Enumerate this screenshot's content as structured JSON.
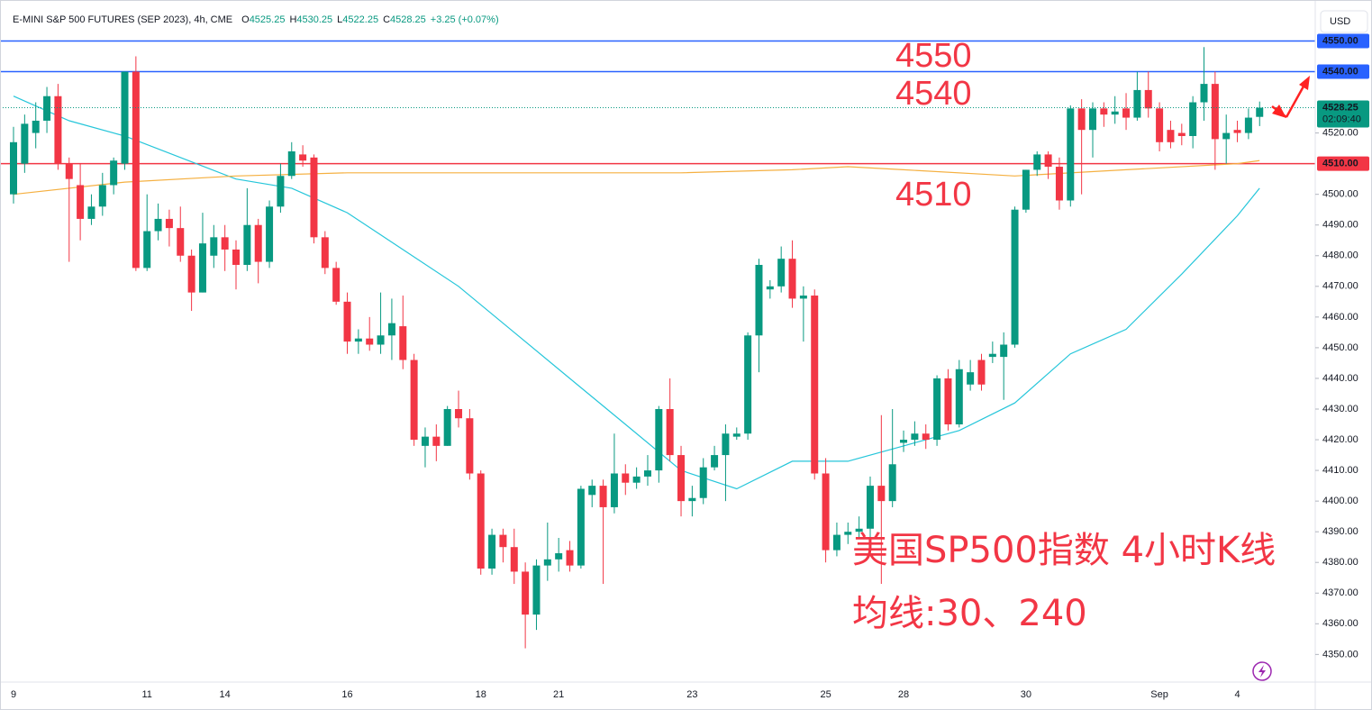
{
  "chart_data": {
    "type": "candlestick",
    "title": "E-MINI S&P 500 FUTURES (SEP 2023), 4h, CME",
    "ohlc_legend": [
      {
        "key": "O",
        "value": 4525.25
      },
      {
        "key": "H",
        "value": 4530.25
      },
      {
        "key": "L",
        "value": 4522.25
      },
      {
        "key": "C",
        "value": 4528.25
      }
    ],
    "change": "+3.25 (+0.07%)",
    "currency": "USD",
    "up_color": "#089981",
    "down_color": "#f23645",
    "categories": [
      "9",
      null,
      null,
      null,
      null,
      null,
      null,
      null,
      null,
      null,
      null,
      null,
      "11",
      null,
      null,
      null,
      null,
      null,
      null,
      "14",
      null,
      null,
      null,
      null,
      null,
      null,
      null,
      null,
      null,
      null,
      "16",
      null,
      null,
      null,
      null,
      null,
      null,
      null,
      null,
      null,
      null,
      null,
      "18",
      null,
      null,
      null,
      null,
      null,
      null,
      "21",
      null,
      null,
      null,
      null,
      null,
      null,
      null,
      null,
      null,
      null,
      null,
      "23",
      null,
      null,
      null,
      null,
      null,
      null,
      null,
      null,
      null,
      null,
      null,
      "25",
      null,
      null,
      null,
      null,
      null,
      null,
      "28",
      null,
      null,
      null,
      null,
      null,
      null,
      null,
      null,
      null,
      null,
      "30",
      null,
      null,
      null,
      null,
      null,
      null,
      null,
      null,
      null,
      null,
      null,
      "Sep",
      null,
      null,
      null,
      null,
      null,
      null,
      "4",
      null,
      null
    ],
    "open": [
      4500,
      4510,
      4520,
      4524,
      4532,
      4510,
      4503,
      4492,
      4496,
      4503,
      4510,
      4540,
      4476,
      4488,
      4492,
      4489,
      4480,
      4468,
      4480,
      4486,
      4482,
      4477,
      4490,
      4478,
      4496,
      4506,
      4513,
      4512,
      4486,
      4476,
      4465,
      4452,
      4453,
      4451,
      4454,
      4457,
      4446,
      4418,
      4421,
      4418,
      4430,
      4427,
      4409,
      4378,
      4389,
      4385,
      4377,
      4363,
      4379,
      4381,
      4384,
      4379,
      4402,
      4405,
      4398,
      4409,
      4406,
      4408,
      4410,
      4430,
      4415,
      4400,
      4401,
      4411,
      4415,
      4421,
      4422,
      4454,
      4469,
      4470,
      4479,
      4466,
      4467,
      4409,
      4384,
      4389,
      4390,
      4391,
      4405,
      4400,
      4419,
      4420,
      4422,
      4420,
      4440,
      4425,
      4438,
      4446,
      4447,
      4447,
      4451,
      4495,
      4508,
      4513,
      4509,
      4498,
      4528,
      4521,
      4528,
      4526,
      4528,
      4525,
      4534,
      4528,
      4521,
      4520,
      4519,
      4530,
      4536,
      4518,
      4521,
      4520,
      4525.25
    ],
    "high": [
      4522,
      4526,
      4530,
      4535,
      4536,
      4512,
      4510,
      4500,
      4507,
      4512,
      4540,
      4545,
      4500,
      4497,
      4495,
      4496,
      4482,
      4494,
      4490,
      4490,
      4485,
      4502,
      4492,
      4498,
      4510,
      4517,
      4516,
      4513,
      4488,
      4478,
      4468,
      4456,
      4460,
      4468,
      4466,
      4467,
      4448,
      4424,
      4425,
      4431,
      4436,
      4430,
      4410,
      4391,
      4391,
      4391,
      4380,
      4381,
      4393,
      4388,
      4387,
      4405,
      4407,
      4407,
      4422,
      4412,
      4411,
      4415,
      4431,
      4440,
      4418,
      4405,
      4414,
      4418,
      4425,
      4424,
      4455,
      4479,
      4472,
      4483,
      4485,
      4470,
      4469,
      4414,
      4393,
      4393,
      4395,
      4408,
      4428,
      4430,
      4423,
      4426,
      4425,
      4441,
      4443,
      4446,
      4446,
      4448,
      4452,
      4455,
      4496,
      4508,
      4514,
      4514,
      4512,
      4529,
      4531,
      4530,
      4530,
      4532,
      4533,
      4540,
      4540,
      4530,
      4524,
      4523,
      4532,
      4548,
      4540,
      4526,
      4524,
      4528,
      4530.25
    ],
    "low": [
      4497,
      4507,
      4515,
      4520,
      4508,
      4478,
      4485,
      4490,
      4493,
      4500,
      4508,
      4475,
      4475,
      4485,
      4483,
      4478,
      4462,
      4468,
      4476,
      4475,
      4469,
      4475,
      4471,
      4476,
      4494,
      4505,
      4509,
      4484,
      4474,
      4464,
      4448,
      4448,
      4449,
      4448,
      4446,
      4443,
      4418,
      4411,
      4413,
      4418,
      4424,
      4407,
      4376,
      4376,
      4380,
      4373,
      4352,
      4358,
      4374,
      4377,
      4377,
      4378,
      4398,
      4373,
      4396,
      4402,
      4404,
      4405,
      4406,
      4413,
      4395,
      4395,
      4399,
      4410,
      4400,
      4420,
      4420,
      4442,
      4466,
      4468,
      4463,
      4452,
      4407,
      4380,
      4382,
      4386,
      4388,
      4386,
      4373,
      4398,
      4416,
      4418,
      4417,
      4418,
      4423,
      4424,
      4436,
      4436,
      4445,
      4433,
      4450,
      4494,
      4506,
      4505,
      4495,
      4496,
      4500,
      4512,
      4522,
      4523,
      4521,
      4524,
      4525,
      4514,
      4515,
      4516,
      4515,
      4524,
      4508,
      4510,
      4517,
      4518,
      4522.25
    ],
    "close": [
      4517,
      4523,
      4524,
      4532,
      4510,
      4505,
      4492,
      4496,
      4503,
      4511,
      4540,
      4476,
      4488,
      4492,
      4489,
      4480,
      4468,
      4484,
      4486,
      4482,
      4477,
      4490,
      4478,
      4496,
      4506,
      4514,
      4511,
      4486,
      4476,
      4465,
      4452,
      4453,
      4451,
      4454,
      4458,
      4446,
      4420,
      4421,
      4418,
      4430,
      4427,
      4409,
      4378,
      4389,
      4385,
      4377,
      4363,
      4379,
      4381,
      4383,
      4379,
      4404,
      4405,
      4398,
      4409,
      4406,
      4408,
      4410,
      4430,
      4415,
      4400,
      4401,
      4411,
      4415,
      4422,
      4422,
      4454,
      4477,
      4470,
      4479,
      4466,
      4467,
      4409,
      4384,
      4389,
      4390,
      4391,
      4405,
      4400,
      4412,
      4420,
      4422,
      4420,
      4440,
      4425,
      4443,
      4442,
      4438,
      4448,
      4451,
      4495,
      4508,
      4513,
      4509,
      4498,
      4528,
      4521,
      4528,
      4526,
      4527,
      4525,
      4534,
      4528,
      4517,
      4517,
      4519,
      4530,
      4536,
      4518,
      4520,
      4520,
      4525,
      4528.25
    ],
    "series": [
      {
        "type": "line",
        "color": "#26c6da",
        "x": [
          0,
          5,
          10,
          15,
          20,
          25,
          30,
          35,
          40,
          45,
          50,
          55,
          60,
          65,
          70,
          75,
          80,
          85,
          90,
          95,
          100,
          105,
          110,
          112
        ],
        "values": [
          4532,
          4524,
          4519,
          4512,
          4505,
          4502,
          4494,
          4482,
          4470,
          4455,
          4440,
          4425,
          4410,
          4404,
          4413,
          4413,
          4418,
          4423,
          4432,
          4448,
          4456,
          4474,
          4493,
          4502
        ]
      },
      {
        "type": "line",
        "color": "#f5b041",
        "x": [
          0,
          10,
          20,
          30,
          40,
          50,
          60,
          70,
          75,
          80,
          90,
          100,
          110,
          112
        ],
        "values": [
          4500,
          4504,
          4506,
          4507,
          4507,
          4507,
          4507,
          4508,
          4509,
          4508,
          4506,
          4508,
          4510,
          4511
        ]
      }
    ],
    "levels": [
      {
        "value": 4550,
        "label": "4550.00",
        "color": "#2962ff"
      },
      {
        "value": 4540,
        "label": "4540.00",
        "color": "#2962ff"
      },
      {
        "value": 4510,
        "label": "4510.00",
        "color": "#f23645"
      }
    ],
    "last_price": 4528.25,
    "countdown": "02:09:40",
    "annotations": [
      {
        "text": "4550",
        "value": 4550
      },
      {
        "text": "4540",
        "value": 4540
      },
      {
        "text": "4510",
        "value": 4510
      }
    ],
    "caption": [
      "美国SP500指数 4小时K线",
      "均线:30、240"
    ],
    "xlim": [
      -1.215,
      117
    ],
    "ylim": [
      4341,
      4561
    ],
    "yticks": [
      {
        "value": 4350,
        "label": "4350.00"
      },
      {
        "value": 4360,
        "label": "4360.00"
      },
      {
        "value": 4370,
        "label": "4370.00"
      },
      {
        "value": 4380,
        "label": "4380.00"
      },
      {
        "value": 4390,
        "label": "4390.00"
      },
      {
        "value": 4400,
        "label": "4400.00"
      },
      {
        "value": 4410,
        "label": "4410.00"
      },
      {
        "value": 4420,
        "label": "4420.00"
      },
      {
        "value": 4430,
        "label": "4430.00"
      },
      {
        "value": 4440,
        "label": "4440.00"
      },
      {
        "value": 4450,
        "label": "4450.00"
      },
      {
        "value": 4460,
        "label": "4460.00"
      },
      {
        "value": 4470,
        "label": "4470.00"
      },
      {
        "value": 4480,
        "label": "4480.00"
      },
      {
        "value": 4490,
        "label": "4490.00"
      },
      {
        "value": 4500,
        "label": "4500.00"
      },
      {
        "value": 4520,
        "label": "4520.00"
      }
    ]
  }
}
